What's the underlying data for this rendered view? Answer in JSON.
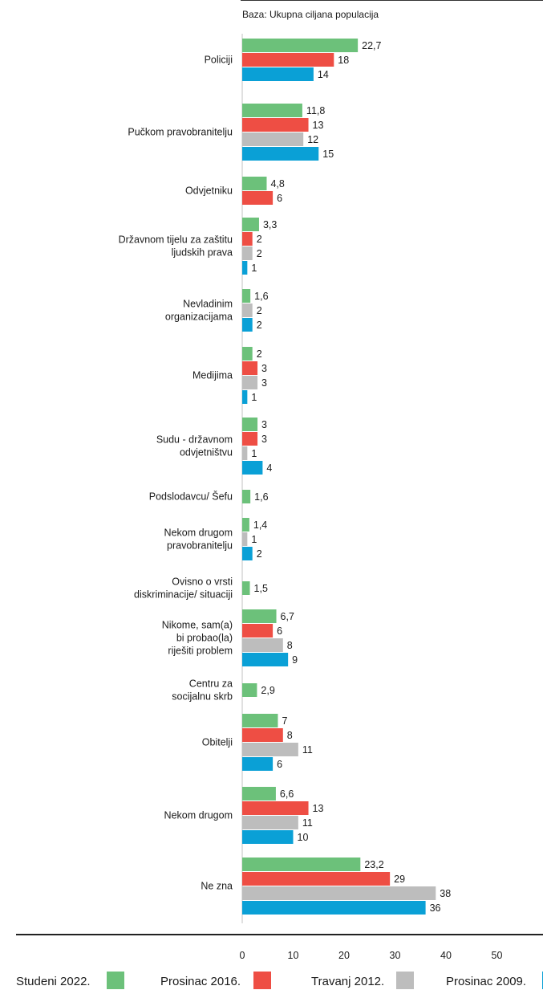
{
  "chart_data": {
    "type": "bar",
    "orientation": "horizontal",
    "subtitle": "Baza: Ukupna ciljana populacija",
    "xlim": [
      0,
      50
    ],
    "xticks": [
      0,
      10,
      20,
      30,
      40,
      50
    ],
    "grid": false,
    "legend_position": "bottom",
    "series": [
      {
        "name": "Studeni 2022.",
        "color": "#6cc17a"
      },
      {
        "name": "Prosinac 2016.",
        "color": "#ee4e44"
      },
      {
        "name": "Travanj 2012.",
        "color": "#bdbdbd"
      },
      {
        "name": "Prosinac 2009.",
        "color": "#0aa0d6"
      }
    ],
    "categories": [
      {
        "label": [
          "Policiji"
        ],
        "values": [
          22.7,
          18,
          null,
          14
        ],
        "labels": [
          "22,7",
          "18",
          "",
          "14"
        ]
      },
      {
        "label": [
          "Pučkom pravobranitelju"
        ],
        "values": [
          11.8,
          13,
          12,
          15
        ],
        "labels": [
          "11,8",
          "13",
          "12",
          "15"
        ]
      },
      {
        "label": [
          "Odvjetniku"
        ],
        "values": [
          4.8,
          6,
          null,
          null
        ],
        "labels": [
          "4,8",
          "6",
          "",
          ""
        ]
      },
      {
        "label": [
          "Državnom tijelu za zaštitu",
          "ljudskih prava"
        ],
        "values": [
          3.3,
          2,
          2,
          1
        ],
        "labels": [
          "3,3",
          "2",
          "2",
          "1"
        ]
      },
      {
        "label": [
          "Nevladinim",
          "organizacijama"
        ],
        "values": [
          1.6,
          null,
          2,
          2
        ],
        "labels": [
          "1,6",
          "",
          "2",
          "2"
        ]
      },
      {
        "label": [
          "Medijima"
        ],
        "values": [
          2,
          3,
          3,
          1
        ],
        "labels": [
          "2",
          "3",
          "3",
          "1"
        ]
      },
      {
        "label": [
          "Sudu - državnom",
          "odvjetništvu"
        ],
        "values": [
          3,
          3,
          1,
          4
        ],
        "labels": [
          "3",
          "3",
          "1",
          "4"
        ]
      },
      {
        "label": [
          "Podslodavcu/ Šefu"
        ],
        "values": [
          1.6,
          null,
          null,
          null
        ],
        "labels": [
          "1,6",
          "",
          "",
          ""
        ]
      },
      {
        "label": [
          "Nekom drugom",
          "pravobranitelju"
        ],
        "values": [
          1.4,
          null,
          1,
          2
        ],
        "labels": [
          "1,4",
          "",
          "1",
          "2"
        ]
      },
      {
        "label": [
          "Ovisno o vrsti",
          "diskriminacije/ situaciji"
        ],
        "values": [
          1.5,
          null,
          null,
          null
        ],
        "labels": [
          "1,5",
          "",
          "",
          ""
        ]
      },
      {
        "label": [
          "Nikome, sam(a)",
          "bi probao(la)",
          "riješiti problem"
        ],
        "values": [
          6.7,
          6,
          8,
          9
        ],
        "labels": [
          "6,7",
          "6",
          "8",
          "9"
        ]
      },
      {
        "label": [
          "Centru za",
          "socijalnu skrb"
        ],
        "values": [
          2.9,
          null,
          null,
          null
        ],
        "labels": [
          "2,9",
          "",
          "",
          ""
        ]
      },
      {
        "label": [
          "Obitelji"
        ],
        "values": [
          7,
          8,
          11,
          6
        ],
        "labels": [
          "7",
          "8",
          "11",
          "6"
        ]
      },
      {
        "label": [
          "Nekom drugom"
        ],
        "values": [
          6.6,
          13,
          11,
          10
        ],
        "labels": [
          "6,6",
          "13",
          "11",
          "10"
        ]
      },
      {
        "label": [
          "Ne zna"
        ],
        "values": [
          23.2,
          29,
          38,
          36
        ],
        "labels": [
          "23,2",
          "29",
          "38",
          "36"
        ]
      }
    ]
  }
}
